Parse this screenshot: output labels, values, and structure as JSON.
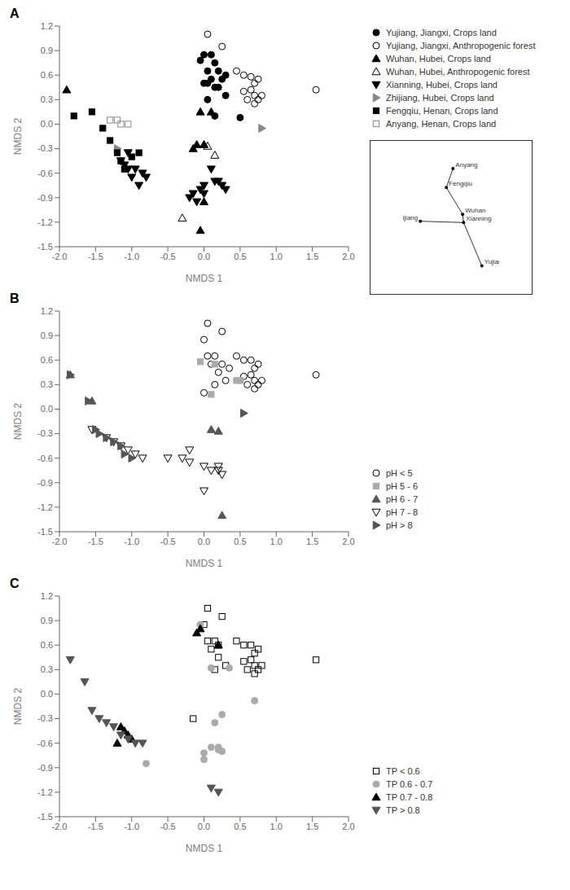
{
  "chart_data": [
    {
      "type": "scatter",
      "title": "A",
      "x_label": "NMDS 1",
      "y_label": "NMDS 2",
      "grid": false,
      "legend": "upper right",
      "xlim": [
        -2.0,
        2.0
      ],
      "ylim": [
        -1.5,
        1.2
      ],
      "xticks": [
        {
          "value": -2.0,
          "label": "-2.0"
        },
        -1.5,
        {
          "value": -1.0,
          "label": "-1.0"
        },
        -0.5,
        {
          "value": 0.0,
          "label": "0.0"
        },
        0.5,
        {
          "value": 1.0,
          "label": "1.0"
        },
        1.5,
        {
          "value": 2.0,
          "label": "2.0"
        }
      ],
      "yticks": [
        -1.5,
        -1.2,
        -0.9,
        -0.6,
        -0.3,
        {
          "value": 0.0,
          "label": "0.0"
        },
        0.3,
        0.6,
        0.9,
        1.2
      ],
      "series": [
        {
          "name": "Yujiang, Jiangxi, Crops land",
          "color": "black",
          "marker": "circle",
          "x": [
            0.0,
            0.1,
            -0.05,
            0.15,
            0.2,
            0.05,
            0.3,
            0.25,
            0.05,
            0.15,
            0.1,
            0.0,
            0.2,
            0.3,
            0.05,
            0.15,
            0.5
          ],
          "y": [
            0.85,
            0.85,
            0.78,
            0.75,
            0.65,
            0.65,
            0.6,
            0.55,
            0.5,
            0.45,
            0.55,
            0.5,
            0.45,
            0.35,
            0.3,
            0.1,
            0.08
          ]
        },
        {
          "name": "Yujiang, Jiangxi, Anthropogenic forest",
          "color": "black",
          "marker": "circle-open",
          "x": [
            0.05,
            0.25,
            0.45,
            0.55,
            0.65,
            0.7,
            0.75,
            0.55,
            0.65,
            0.7,
            0.8,
            0.75,
            0.6,
            0.7,
            1.55
          ],
          "y": [
            1.1,
            0.95,
            0.65,
            0.6,
            0.58,
            0.5,
            0.55,
            0.4,
            0.42,
            0.35,
            0.35,
            0.3,
            0.3,
            0.25,
            0.42
          ]
        },
        {
          "name": "Wuhan, Hubei, Crops land",
          "color": "black",
          "marker": "triangle-up",
          "x": [
            -1.9,
            0.1,
            -0.05,
            0.0,
            -0.1,
            -0.15,
            0.0,
            -0.05
          ],
          "y": [
            0.42,
            0.15,
            0.15,
            -0.25,
            -0.25,
            -0.3,
            -0.95,
            -1.3
          ]
        },
        {
          "name": "Wuhan, Hubei, Anthropogenic forest",
          "color": "black",
          "marker": "triangle-up-open",
          "x": [
            0.15,
            0.05,
            -0.3
          ],
          "y": [
            -0.38,
            -0.27,
            -1.15
          ]
        },
        {
          "name": "Xianning, Hubei, Crops land",
          "color": "black",
          "marker": "triangle-down",
          "x": [
            -1.05,
            -1.15,
            -1.1,
            -1.05,
            -0.95,
            -0.85,
            -1.0,
            -0.8,
            -0.9,
            0.0,
            0.15,
            0.2,
            0.25,
            0.3,
            -0.05,
            -0.15,
            -0.2,
            0.0,
            -0.1,
            0.1
          ],
          "y": [
            -0.35,
            -0.45,
            -0.5,
            -0.55,
            -0.55,
            -0.6,
            -0.65,
            -0.65,
            -0.75,
            -0.75,
            -0.7,
            -0.7,
            -0.75,
            -0.8,
            -0.8,
            -0.85,
            -0.9,
            -0.85,
            -0.95,
            -0.55
          ]
        },
        {
          "name": "Zhijiang, Hubei, Crops land",
          "color": "#888888",
          "marker": "triangle-right",
          "x": [
            -1.2,
            0.8
          ],
          "y": [
            -0.3,
            -0.05
          ]
        },
        {
          "name": "Fengqiu, Henan, Crops land",
          "color": "black",
          "marker": "square",
          "x": [
            -1.8,
            -1.55,
            -1.4,
            -1.3,
            -1.2,
            -1.15,
            -1.1,
            -1.0,
            -0.9
          ],
          "y": [
            0.1,
            0.15,
            -0.05,
            -0.2,
            -0.35,
            -0.45,
            -0.55,
            -0.4,
            -0.35
          ]
        },
        {
          "name": "Anyang, Henan, Crops land",
          "color": "#888888",
          "marker": "square-open",
          "x": [
            -1.3,
            -1.2,
            -1.05,
            -1.15
          ],
          "y": [
            0.05,
            0.05,
            0.0,
            0.0
          ]
        }
      ],
      "inset": {
        "type": "scatter",
        "xlim": [
          0,
          1
        ],
        "ylim": [
          0,
          1
        ],
        "tick_labels": false,
        "labels": [
          "Anyang",
          "Fengqiu",
          "Wuhan",
          "Zhijiang",
          "Xianning",
          "Yujiang"
        ],
        "x": [
          0.52,
          0.45,
          0.62,
          0.18,
          0.63,
          0.82
        ],
        "y": [
          0.88,
          0.74,
          0.54,
          0.49,
          0.48,
          0.16
        ],
        "links": [
          [
            "Yujiang",
            "Xianning"
          ],
          [
            "Xianning",
            "Wuhan"
          ],
          [
            "Wuhan",
            "Fengqiu"
          ],
          [
            "Fengqiu",
            "Anyang"
          ],
          [
            "Xianning",
            "Zhijiang"
          ]
        ]
      }
    },
    {
      "type": "scatter",
      "title": "B",
      "x_label": "NMDS 1",
      "y_label": "NMDS 2",
      "grid": false,
      "legend": "lower right",
      "xlim": [
        -2.0,
        2.0
      ],
      "ylim": [
        -1.5,
        1.2
      ],
      "xticks": [
        {
          "value": -2.0,
          "label": "-2.0"
        },
        -1.5,
        {
          "value": -1.0,
          "label": "-1.0"
        },
        -0.5,
        {
          "value": 0.0,
          "label": "0.0"
        },
        0.5,
        {
          "value": 1.0,
          "label": "1.0"
        },
        1.5,
        {
          "value": 2.0,
          "label": "2.0"
        }
      ],
      "yticks": [
        -1.5,
        -1.2,
        -0.9,
        -0.6,
        -0.3,
        {
          "value": 0.0,
          "label": "0.0"
        },
        0.3,
        0.6,
        0.9,
        1.2
      ],
      "series": [
        {
          "name": "pH < 5",
          "color": "black",
          "marker": "circle-open",
          "x": [
            0.05,
            0.25,
            0.0,
            0.45,
            0.55,
            0.65,
            0.7,
            0.75,
            0.55,
            0.65,
            0.7,
            0.8,
            0.75,
            0.6,
            0.7,
            1.55,
            0.1,
            0.2,
            0.3,
            0.15,
            0.0,
            0.05,
            0.15,
            0.25,
            0.35
          ],
          "y": [
            1.05,
            0.95,
            0.85,
            0.65,
            0.6,
            0.6,
            0.5,
            0.55,
            0.4,
            0.42,
            0.35,
            0.35,
            0.3,
            0.3,
            0.25,
            0.42,
            0.55,
            0.45,
            0.35,
            0.3,
            0.2,
            0.65,
            0.65,
            0.55,
            0.5
          ]
        },
        {
          "name": "pH 5 - 6",
          "color": "#aaaaaa",
          "marker": "square",
          "x": [
            -0.05,
            0.15,
            0.1,
            0.45,
            0.5
          ],
          "y": [
            0.58,
            0.55,
            0.18,
            0.35,
            0.35
          ]
        },
        {
          "name": "pH 6 - 7",
          "color": "#555555",
          "marker": "triangle-up",
          "x": [
            -1.85,
            -1.55,
            0.1,
            0.2,
            0.25
          ],
          "y": [
            0.42,
            0.1,
            -0.25,
            -0.27,
            -1.3
          ]
        },
        {
          "name": "pH 7 - 8",
          "color": "black",
          "marker": "triangle-down-open",
          "x": [
            -1.55,
            -1.35,
            -1.25,
            -1.15,
            -1.05,
            -0.95,
            -0.85,
            -0.5,
            -0.3,
            -0.2,
            0.0,
            0.1,
            0.2,
            0.2,
            0.25,
            -0.2,
            0.0
          ],
          "y": [
            -0.25,
            -0.35,
            -0.4,
            -0.45,
            -0.5,
            -0.55,
            -0.6,
            -0.6,
            -0.6,
            -0.65,
            -0.7,
            -0.75,
            -0.7,
            -0.75,
            -0.8,
            -0.5,
            -1.0
          ]
        },
        {
          "name": "pH > 8",
          "color": "#555555",
          "marker": "triangle-right",
          "x": [
            -1.85,
            -1.6,
            -1.5,
            -1.45,
            -1.35,
            -1.25,
            -1.15,
            -1.1,
            -1.0,
            0.55
          ],
          "y": [
            0.42,
            0.1,
            -0.25,
            -0.3,
            -0.35,
            -0.4,
            -0.45,
            -0.55,
            -0.6,
            -0.05
          ]
        }
      ]
    },
    {
      "type": "scatter",
      "title": "C",
      "x_label": "NMDS 1",
      "y_label": "NMDS 2",
      "grid": false,
      "legend": "lower right",
      "xlim": [
        -2.0,
        2.0
      ],
      "ylim": [
        -1.5,
        1.2
      ],
      "xticks": [
        {
          "value": -2.0,
          "label": "-2.0"
        },
        -1.5,
        {
          "value": -1.0,
          "label": "-1.0"
        },
        -0.5,
        {
          "value": 0.0,
          "label": "0.0"
        },
        0.5,
        {
          "value": 1.0,
          "label": "1.0"
        },
        1.5,
        {
          "value": 2.0,
          "label": "2.0"
        }
      ],
      "yticks": [
        -1.5,
        -1.2,
        -0.9,
        -0.6,
        -0.3,
        {
          "value": 0.0,
          "label": "0.0"
        },
        0.3,
        0.6,
        0.9,
        1.2
      ],
      "series": [
        {
          "name": "TP < 0.6",
          "color": "black",
          "marker": "square-open",
          "x": [
            0.05,
            0.25,
            0.0,
            0.45,
            0.55,
            0.65,
            0.7,
            0.75,
            0.55,
            0.65,
            0.7,
            0.8,
            0.75,
            0.6,
            0.7,
            1.55,
            0.1,
            0.2,
            0.3,
            0.15,
            0.05,
            0.15,
            0.2,
            -0.15
          ],
          "y": [
            1.05,
            0.95,
            0.85,
            0.65,
            0.6,
            0.6,
            0.5,
            0.55,
            0.4,
            0.42,
            0.35,
            0.35,
            0.3,
            0.3,
            0.25,
            0.42,
            0.55,
            0.45,
            0.35,
            0.3,
            0.65,
            0.65,
            0.6,
            -0.3
          ]
        },
        {
          "name": "TP 0.6 - 0.7",
          "color": "#aaaaaa",
          "marker": "circle",
          "x": [
            -0.05,
            0.1,
            0.35,
            0.25,
            0.15,
            0.2,
            0.25,
            0.0,
            -0.8,
            0.7,
            0.1,
            0.2,
            0.0
          ],
          "y": [
            0.85,
            0.32,
            0.32,
            -0.25,
            -0.35,
            -0.65,
            -0.7,
            -0.8,
            -0.85,
            -0.08,
            -0.65,
            -0.68,
            -0.72
          ]
        },
        {
          "name": "TP 0.7 - 0.8",
          "color": "black",
          "marker": "triangle-up",
          "x": [
            -0.05,
            -0.1,
            -1.15,
            -1.1,
            -1.05,
            -1.0,
            -1.2,
            0.2
          ],
          "y": [
            0.8,
            0.75,
            -0.4,
            -0.45,
            -0.5,
            -0.55,
            -0.6,
            0.6
          ]
        },
        {
          "name": "TP > 0.8",
          "color": "#555555",
          "marker": "triangle-down",
          "x": [
            -1.85,
            -1.65,
            -1.55,
            -1.45,
            -1.35,
            -1.25,
            -1.15,
            -1.05,
            -0.95,
            -0.85,
            0.1,
            0.2
          ],
          "y": [
            0.42,
            0.15,
            -0.2,
            -0.3,
            -0.35,
            -0.4,
            -0.5,
            -0.55,
            -0.6,
            -0.6,
            -1.15,
            -1.2
          ]
        }
      ]
    }
  ]
}
